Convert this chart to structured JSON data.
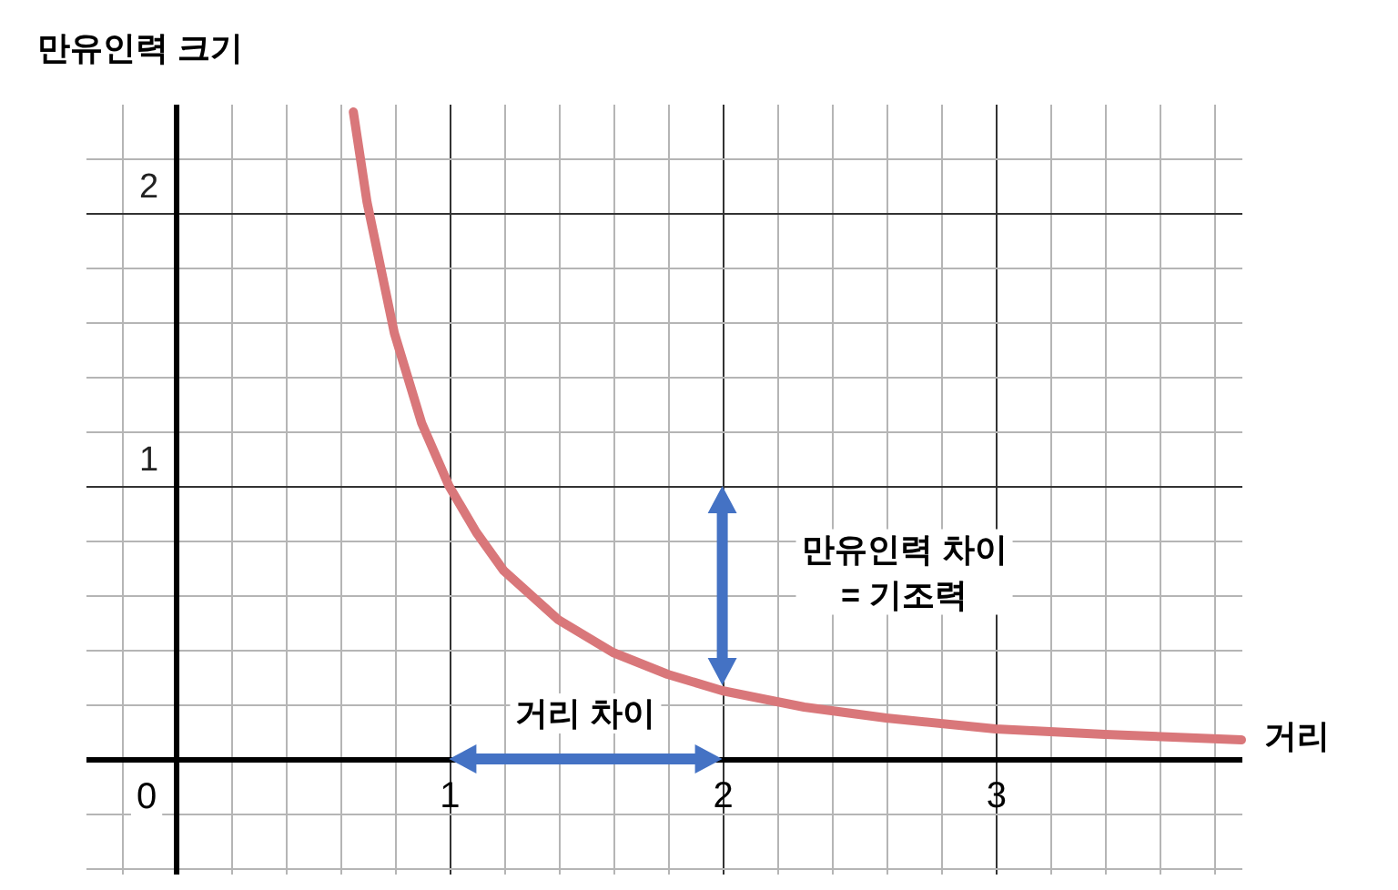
{
  "chart_data": {
    "type": "line",
    "xlabel": "거리",
    "ylabel": "만유인력 크기",
    "x": [
      0.65,
      0.7,
      0.8,
      0.9,
      1,
      1.1,
      1.2,
      1.4,
      1.6,
      1.8,
      2,
      2.3,
      2.6,
      3,
      3.4,
      3.9
    ],
    "series": [
      {
        "color": "#d9777a",
        "values": [
          2.37,
          2.04,
          1.56,
          1.23,
          1,
          0.83,
          0.69,
          0.51,
          0.39,
          0.31,
          0.25,
          0.19,
          0.15,
          0.11,
          0.09,
          0.07
        ]
      }
    ],
    "xlim": [
      -0.33,
      3.9
    ],
    "ylim": [
      -0.42,
      2.4
    ],
    "xticks": [
      {
        "value": -0.2,
        "label": null
      },
      {
        "value": 0,
        "label": null
      },
      {
        "value": 0.2,
        "label": null
      },
      {
        "value": 0.4,
        "label": null
      },
      {
        "value": 0.6,
        "label": null
      },
      {
        "value": 0.8,
        "label": null
      },
      1,
      {
        "value": 1.2,
        "label": null
      },
      {
        "value": 1.4,
        "label": null
      },
      {
        "value": 1.6,
        "label": null
      },
      {
        "value": 1.8,
        "label": null
      },
      2,
      {
        "value": 2.2,
        "label": null
      },
      {
        "value": 2.4,
        "label": null
      },
      {
        "value": 2.6,
        "label": null
      },
      {
        "value": 2.8,
        "label": null
      },
      3,
      {
        "value": 3.2,
        "label": null
      },
      {
        "value": 3.4,
        "label": null
      },
      {
        "value": 3.6,
        "label": null
      },
      {
        "value": 3.8,
        "label": null
      }
    ],
    "yticks": [
      {
        "value": -0.4,
        "label": null
      },
      {
        "value": -0.2,
        "label": null
      },
      {
        "value": 0.2,
        "label": null
      },
      {
        "value": 0.4,
        "label": null
      },
      {
        "value": 0.6,
        "label": null
      },
      {
        "value": 0.8,
        "label": null
      },
      1,
      {
        "value": 1.2,
        "label": null
      },
      {
        "value": 1.4,
        "label": null
      },
      {
        "value": 1.6,
        "label": null
      },
      {
        "value": 1.8,
        "label": null
      },
      2,
      {
        "value": 2.2,
        "label": null
      }
    ],
    "grid": true,
    "marker": "none",
    "line_style": "solid",
    "annotations": [
      "거리 차이",
      "만유인력 차이\n= 기조력",
      "0"
    ]
  }
}
